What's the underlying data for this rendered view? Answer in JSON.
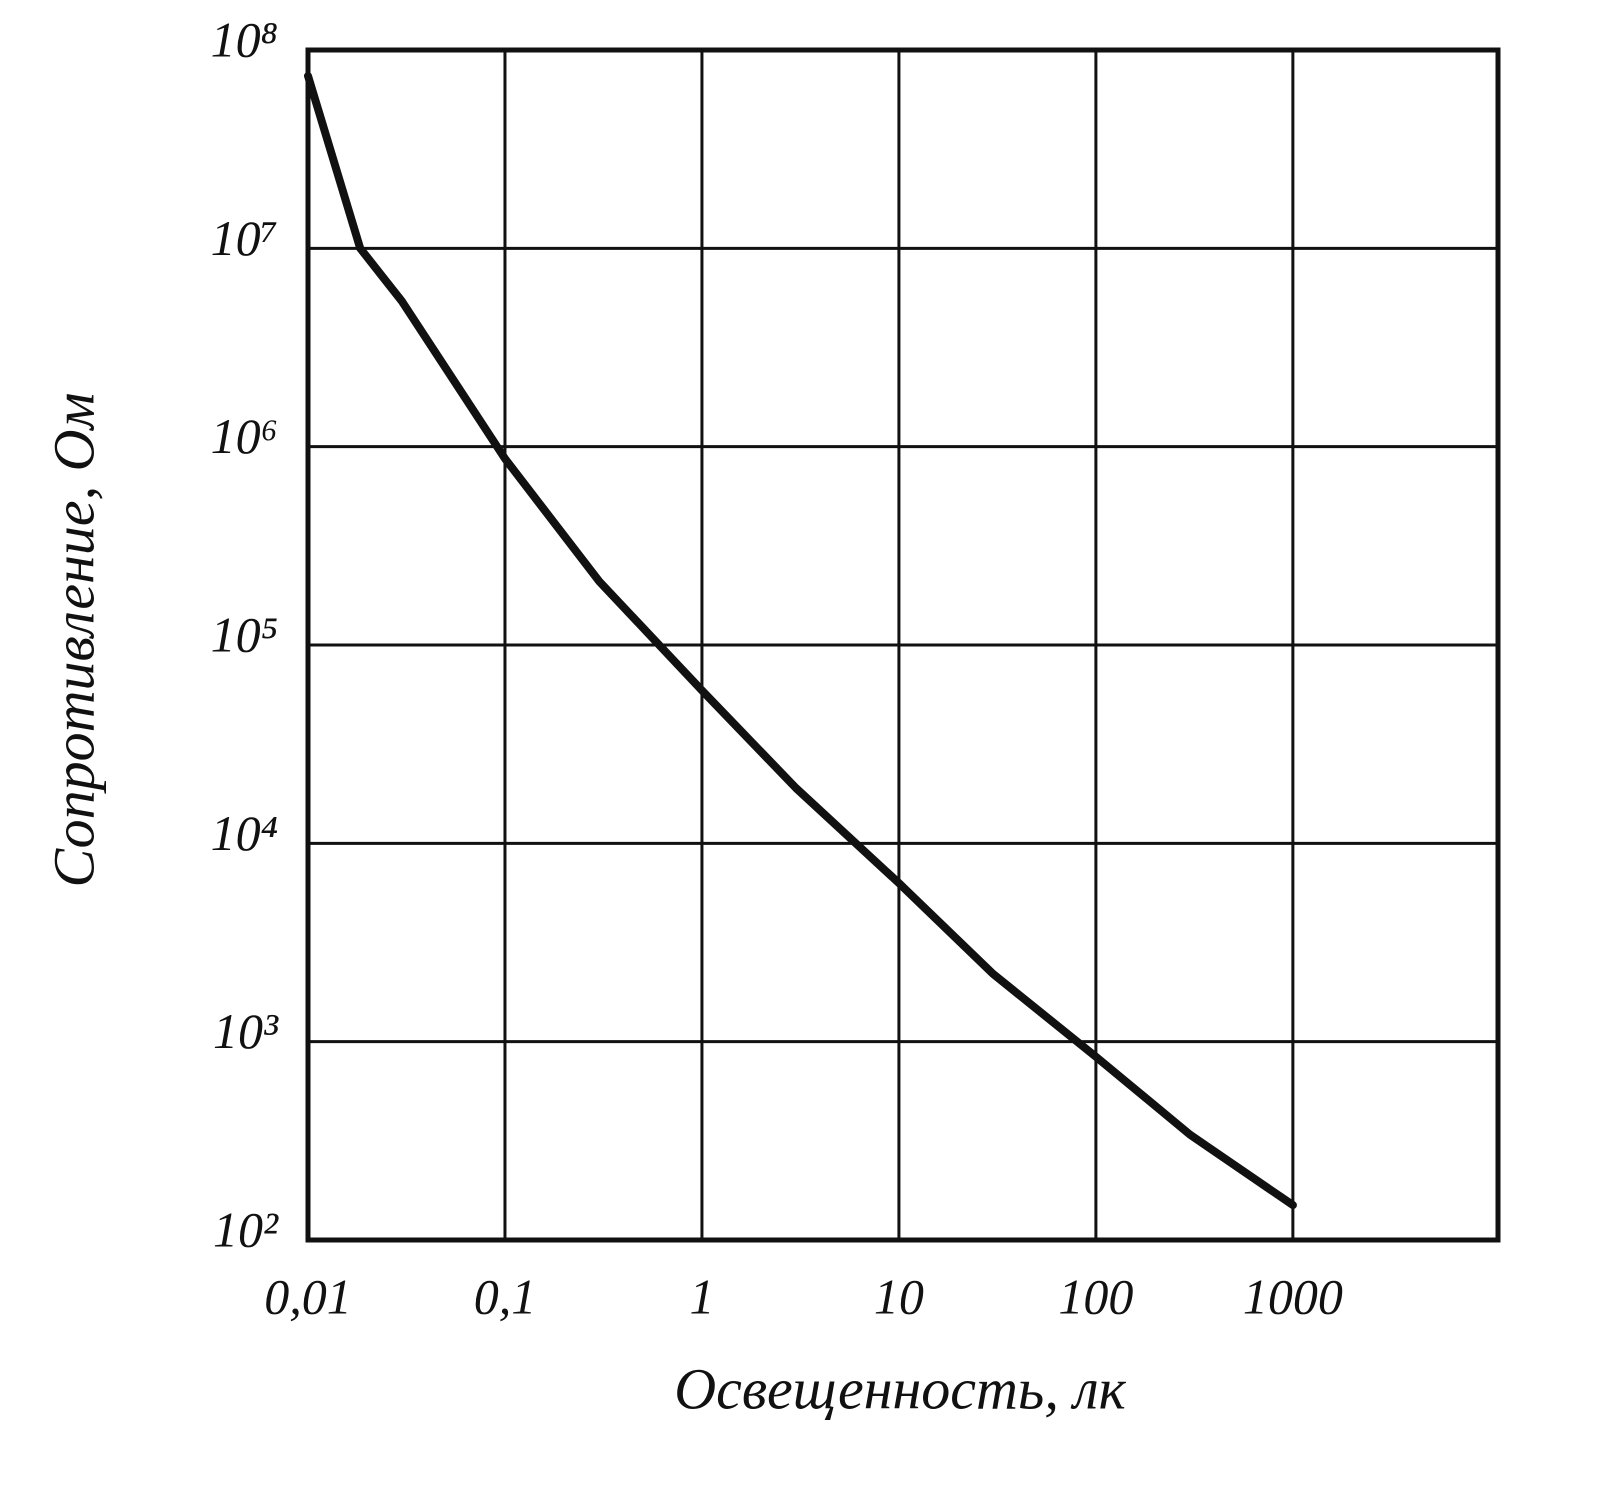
{
  "chart_data": {
    "type": "line",
    "xlabel": "Освещенность, лк",
    "ylabel": "Сопротивление, Ом",
    "x": [
      0.01,
      0.0184,
      0.03,
      0.1,
      0.3,
      1,
      3,
      10,
      30,
      100,
      300,
      1000
    ],
    "series": [
      {
        "name": null,
        "color": "#111111",
        "values": [
          74000000,
          10000000,
          5400000,
          870000,
          210000,
          59000,
          19000,
          6300,
          2200,
          840,
          340,
          150
        ]
      }
    ],
    "xlim": [
      0.01,
      11000
    ],
    "ylim": [
      100,
      100000000
    ],
    "xticks": [
      {
        "value": 0.01,
        "label": "0,01"
      },
      {
        "value": 0.1,
        "label": "0,1"
      },
      1,
      10,
      100,
      1000
    ],
    "yticks": [
      {
        "value": 100,
        "label": "10²"
      },
      {
        "value": 1000,
        "label": "10³"
      },
      {
        "value": 10000,
        "label": "10⁴"
      },
      {
        "value": 100000,
        "label": "10⁵"
      },
      {
        "value": 1000000,
        "label": "10⁶"
      },
      {
        "value": 10000000,
        "label": "10⁷"
      },
      {
        "value": 100000000,
        "label": "10⁸"
      }
    ],
    "xscale": "log",
    "yscale": "log",
    "grid": true
  }
}
